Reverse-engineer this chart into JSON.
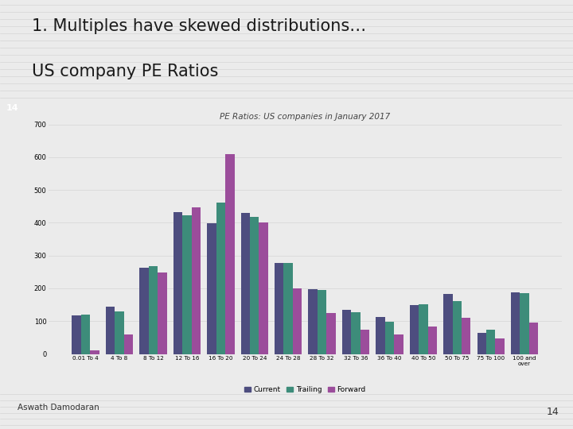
{
  "title_line1": "1. Multiples have skewed distributions…",
  "title_line2": "US company PE Ratios",
  "slide_number": "14",
  "chart_title": "PE Ratios: US companies in January 2017",
  "footer": "Aswath Damodaran",
  "categories": [
    "0.01 To 4",
    "4 To 8",
    "8 To 12",
    "12 To 16",
    "16 To 20",
    "20 To 24",
    "24 To 28",
    "28 To 32",
    "32 To 36",
    "36 To 40",
    "40 To 50",
    "50 To 75",
    "75 To 100",
    "100 and\nover"
  ],
  "current": [
    118,
    143,
    263,
    432,
    398,
    430,
    278,
    198,
    135,
    112,
    148,
    183,
    65,
    188
  ],
  "trailing": [
    120,
    130,
    268,
    422,
    462,
    418,
    278,
    195,
    128,
    98,
    152,
    160,
    73,
    185
  ],
  "forward": [
    10,
    60,
    248,
    448,
    610,
    400,
    200,
    125,
    73,
    60,
    84,
    110,
    47,
    95
  ],
  "color_current": "#4d4d7f",
  "color_trailing": "#3d8c7a",
  "color_forward": "#9b4d9b",
  "ylim": [
    0,
    700
  ],
  "yticks": [
    0,
    100,
    200,
    300,
    400,
    500,
    600,
    700
  ],
  "background_color": "#ebebeb",
  "header_bar_color": "#4d4d7f",
  "title_color": "#1a1a1a",
  "slide_num_color": "#ffffff",
  "grid_color": "#d8d8d8",
  "chart_bg": "#ebebeb"
}
